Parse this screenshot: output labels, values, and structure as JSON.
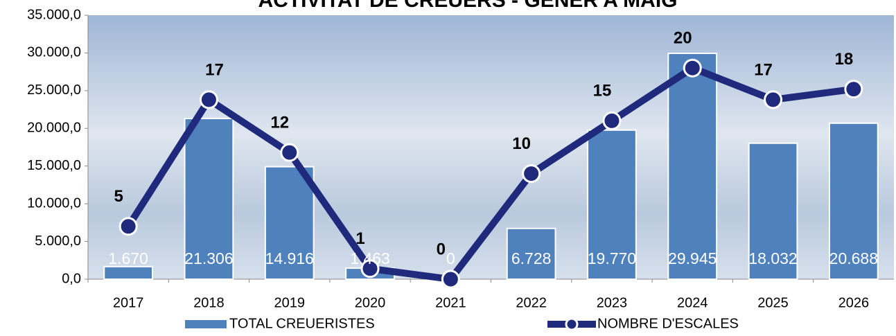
{
  "chart_data": {
    "type": "bar_line",
    "title": "ACTIVITAT DE CREUERS - GENER A MAIG",
    "categories": [
      "2017",
      "2018",
      "2019",
      "2020",
      "2021",
      "2022",
      "2023",
      "2024",
      "2025",
      "2026"
    ],
    "series": [
      {
        "name": "TOTAL CREUERISTES",
        "type": "bar",
        "color": "#4f81bd",
        "values": [
          1670,
          21306,
          14916,
          1463,
          0,
          6728,
          19770,
          29945,
          18032,
          20688
        ],
        "value_labels": [
          "1.670",
          "21.306",
          "14.916",
          "1.463",
          "0",
          "6.728",
          "19.770",
          "29.945",
          "18.032",
          "20.688"
        ]
      },
      {
        "name": "NOMBRE D'ESCALES",
        "type": "line",
        "axis": "y2",
        "color": "#1f2a7c",
        "values": [
          5,
          17,
          12,
          1,
          0,
          10,
          15,
          20,
          17,
          18
        ]
      }
    ],
    "ylim": [
      0,
      35000
    ],
    "yticks": [
      {
        "value": 0,
        "label": "0,0"
      },
      {
        "value": 5000,
        "label": "5.000,0"
      },
      {
        "value": 10000,
        "label": "10.000,0"
      },
      {
        "value": 15000,
        "label": "15.000,0"
      },
      {
        "value": 20000,
        "label": "20.000,0"
      },
      {
        "value": 25000,
        "label": "25.000,0"
      },
      {
        "value": 30000,
        "label": "30.000,0"
      },
      {
        "value": 35000,
        "label": "35.000,0"
      }
    ],
    "y2lim": [
      0,
      25
    ],
    "legend": "bottom"
  }
}
